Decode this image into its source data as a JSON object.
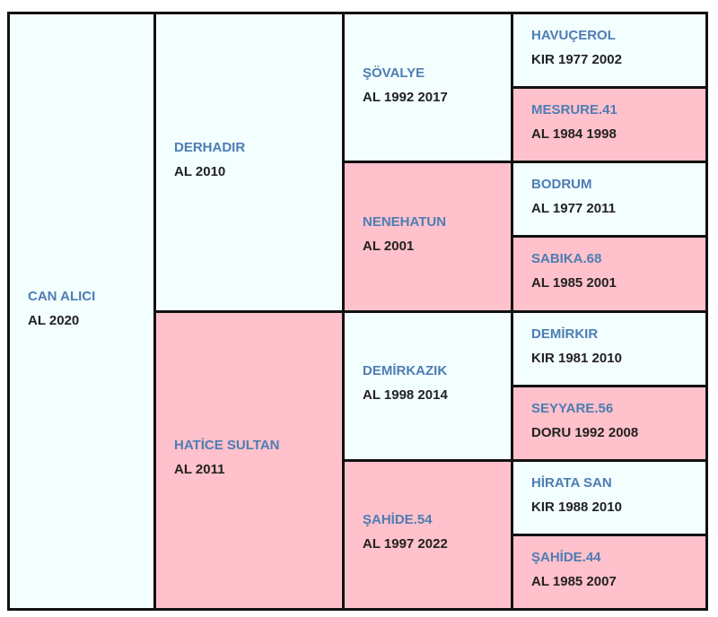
{
  "pedigree": {
    "subject": {
      "name": "CAN ALICI",
      "info": "AL 2020"
    },
    "parents": [
      {
        "name": "DERHADIR",
        "info": "AL 2010"
      },
      {
        "name": "HATİCE SULTAN",
        "info": "AL 2011"
      }
    ],
    "grandparents": [
      {
        "name": "ŞÖVALYE",
        "info": "AL 1992 2017"
      },
      {
        "name": "NENEHATUN",
        "info": "AL 2001"
      },
      {
        "name": "DEMİRKAZIK",
        "info": "AL 1998 2014"
      },
      {
        "name": "ŞAHİDE.54",
        "info": "AL 1997 2022"
      }
    ],
    "great_grandparents": [
      {
        "name": "HAVUÇEROL",
        "info": "KIR 1977 2002"
      },
      {
        "name": "MESRURE.41",
        "info": "AL 1984 1998"
      },
      {
        "name": "BODRUM",
        "info": "AL 1977 2011"
      },
      {
        "name": "SABIKA.68",
        "info": "AL 1985 2001"
      },
      {
        "name": "DEMİRKIR",
        "info": "KIR 1981 2010"
      },
      {
        "name": "SEYYARE.56",
        "info": "DORU 1992 2008"
      },
      {
        "name": "HİRATA SAN",
        "info": "KIR 1988 2010"
      },
      {
        "name": "ŞAHİDE.44",
        "info": "AL 1985 2007"
      }
    ]
  }
}
